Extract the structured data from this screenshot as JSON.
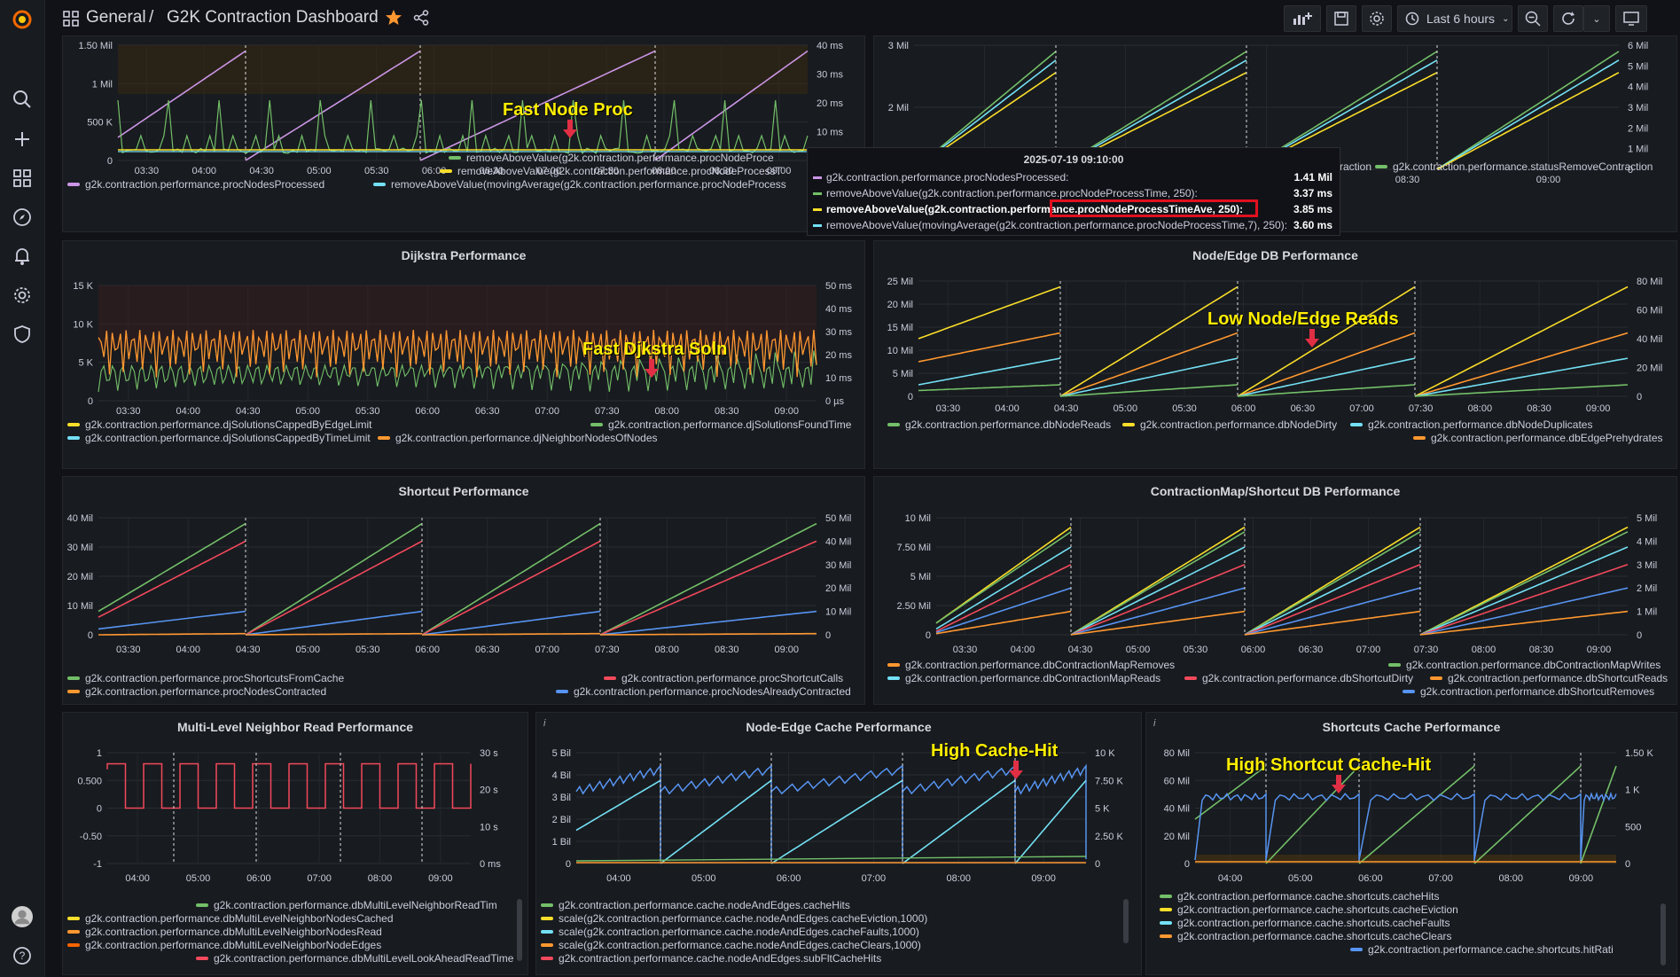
{
  "topbar": {
    "home": "General",
    "sep": "/",
    "title": "G2K Contraction Dashboard",
    "time_range": "Last 6 hours"
  },
  "colors": {
    "green": "#73bf69",
    "yellow": "#fade2a",
    "purple": "#ca95e5",
    "cyan": "#8ab8ff",
    "lightblue": "#73e0f5",
    "orange": "#ff9830",
    "red": "#f2495c",
    "blue": "#5794f2",
    "dark_orange": "#fa6400"
  },
  "icons": {
    "logo": "grafana-logo-icon",
    "search": "search-icon",
    "plus": "plus-icon",
    "dashboards": "dashboards-icon",
    "explore": "compass-icon",
    "alerts": "bell-icon",
    "config": "gear-icon",
    "shield": "shield-icon",
    "avatar": "avatar",
    "help": "help-icon"
  },
  "tooltip": {
    "time": "2025-07-19 09:10:00",
    "rows": [
      {
        "label": "g2k.contraction.performance.procNodesProcessed:",
        "value": "1.41 Mil",
        "color": "#ca95e5",
        "bold": false
      },
      {
        "label": "removeAboveValue(g2k.contraction.performance.procNodeProcessTime, 250):",
        "value": "3.37 ms",
        "color": "#73bf69",
        "bold": false
      },
      {
        "label": "removeAboveValue(g2k.contraction.performance.procNodeProcessTimeAve, 250):",
        "value": "3.85 ms",
        "color": "#fade2a",
        "bold": true
      },
      {
        "label": "removeAboveValue(movingAverage(g2k.contraction.performance.procNodeProcessTime,7), 250):",
        "value": "3.60 ms",
        "color": "#73e0f5",
        "bold": false
      }
    ]
  },
  "panels": {
    "p1": {
      "title": "",
      "y_left": [
        "1.50 Mil",
        "1 Mil",
        "500 K",
        "0"
      ],
      "y_right": [
        "40 ms",
        "30 ms",
        "20 ms",
        "10 ms",
        "0 ms"
      ],
      "x": [
        "03:30",
        "04:00",
        "04:30",
        "05:00",
        "05:30",
        "06:00",
        "06:30",
        "07:00",
        "07:30",
        "08:00",
        "08:30",
        "09:00"
      ],
      "legend": [
        {
          "label": "removeAboveValue(g2k.contraction.performance.procNodeProce",
          "color": "#73bf69"
        },
        {
          "label": "removeAboveValue(g2k.contraction.performance.procNodeProcessT",
          "color": "#fade2a"
        },
        {
          "label": "g2k.contraction.performance.procNodesProcessed",
          "color": "#ca95e5"
        },
        {
          "label": "removeAboveValue(movingAverage(g2k.contraction.performance.procNodeProcess",
          "color": "#73e0f5"
        }
      ],
      "annotation": "Fast Node Proc"
    },
    "p2": {
      "title": "",
      "y_left": [
        "3 Mil",
        "2 Mil",
        "1 Mil"
      ],
      "y_right": [
        "6 Mil",
        "5 Mil",
        "4 Mil",
        "3 Mil",
        "2 Mil",
        "1 Mil",
        "0"
      ],
      "x": [
        "00",
        "07:30",
        "08:00",
        "08:30",
        "09:00"
      ],
      "legend": [
        {
          "label": "raction",
          "color": "#73e0f5"
        },
        {
          "label": "g2k.contraction.performance.statusRemoveContraction",
          "color": "#73bf69"
        }
      ]
    },
    "dijkstra": {
      "title": "Dijkstra Performance",
      "y_left": [
        "15 K",
        "10 K",
        "5 K",
        "0"
      ],
      "y_right": [
        "50 ms",
        "40 ms",
        "30 ms",
        "20 ms",
        "10 ms",
        "0 µs"
      ],
      "x": [
        "03:30",
        "04:00",
        "04:30",
        "05:00",
        "05:30",
        "06:00",
        "06:30",
        "07:00",
        "07:30",
        "08:00",
        "08:30",
        "09:00"
      ],
      "legend": [
        {
          "label": "g2k.contraction.performance.djSolutionsCappedByEdgeLimit",
          "color": "#fade2a"
        },
        {
          "label": "g2k.contraction.performance.djSolutionsFoundTime",
          "color": "#73bf69"
        },
        {
          "label": "g2k.contraction.performance.djSolutionsCappedByTimeLimit",
          "color": "#73e0f5"
        },
        {
          "label": "g2k.contraction.performance.djNeighborNodesOfNodes",
          "color": "#ff9830"
        }
      ],
      "annotation": "Fast Djkstra Soln"
    },
    "nodeedge": {
      "title": "Node/Edge DB Performance",
      "y_left": [
        "25 Mil",
        "20 Mil",
        "15 Mil",
        "10 Mil",
        "5 Mil",
        "0"
      ],
      "y_right": [
        "80 Mil",
        "60 Mil",
        "40 Mil",
        "20 Mil",
        "0"
      ],
      "x": [
        "03:30",
        "04:00",
        "04:30",
        "05:00",
        "05:30",
        "06:00",
        "06:30",
        "07:00",
        "07:30",
        "08:00",
        "08:30",
        "09:00"
      ],
      "legend": [
        {
          "label": "g2k.contraction.performance.dbNodeReads",
          "color": "#73bf69"
        },
        {
          "label": "g2k.contraction.performance.dbNodeDirty",
          "color": "#fade2a"
        },
        {
          "label": "g2k.contraction.performance.dbNodeDuplicates",
          "color": "#73e0f5"
        },
        {
          "label": "g2k.contraction.performance.dbEdgePrehydrates",
          "color": "#ff9830"
        }
      ],
      "annotation": "Low Node/Edge Reads"
    },
    "shortcut": {
      "title": "Shortcut Performance",
      "y_left": [
        "40 Mil",
        "30 Mil",
        "20 Mil",
        "10 Mil",
        "0"
      ],
      "y_right": [
        "50 Mil",
        "40 Mil",
        "30 Mil",
        "20 Mil",
        "10 Mil",
        "0"
      ],
      "x": [
        "03:30",
        "04:00",
        "04:30",
        "05:00",
        "05:30",
        "06:00",
        "06:30",
        "07:00",
        "07:30",
        "08:00",
        "08:30",
        "09:00"
      ],
      "legend": [
        {
          "label": "g2k.contraction.performance.procShortcutsFromCache",
          "color": "#73bf69"
        },
        {
          "label": "g2k.contraction.performance.procShortcutCalls",
          "color": "#f2495c"
        },
        {
          "label": "g2k.contraction.performance.procNodesContracted",
          "color": "#ff9830"
        },
        {
          "label": "g2k.contraction.performance.procNodesAlreadyContracted",
          "color": "#5794f2"
        }
      ]
    },
    "cmap": {
      "title": "ContractionMap/Shortcut DB Performance",
      "y_left": [
        "10 Mil",
        "7.50 Mil",
        "5 Mil",
        "2.50 Mil",
        "0"
      ],
      "y_right": [
        "5 Mil",
        "4 Mil",
        "3 Mil",
        "2 Mil",
        "1 Mil",
        "0"
      ],
      "x": [
        "03:30",
        "04:00",
        "04:30",
        "05:00",
        "05:30",
        "06:00",
        "06:30",
        "07:00",
        "07:30",
        "08:00",
        "08:30",
        "09:00"
      ],
      "legend": [
        {
          "label": "g2k.contraction.performance.dbContractionMapRemoves",
          "color": "#ff9830"
        },
        {
          "label": "g2k.contraction.performance.dbContractionMapWrites",
          "color": "#73bf69"
        },
        {
          "label": "g2k.contraction.performance.dbContractionMapReads",
          "color": "#73e0f5"
        },
        {
          "label": "g2k.contraction.performance.dbShortcutDirty",
          "color": "#f2495c"
        },
        {
          "label": "g2k.contraction.performance.dbShortcutReads",
          "color": "#ff9830"
        },
        {
          "label": "g2k.contraction.performance.dbShortcutRemoves",
          "color": "#5794f2"
        }
      ]
    },
    "mlnr": {
      "title": "Multi-Level Neighbor Read Performance",
      "y_left": [
        "1",
        "0.500",
        "0",
        "-0.50",
        "-1"
      ],
      "y_right": [
        "30 s",
        "20 s",
        "10 s",
        "0 ms"
      ],
      "x": [
        "04:00",
        "05:00",
        "06:00",
        "07:00",
        "08:00",
        "09:00"
      ],
      "legend": [
        {
          "label": "g2k.contraction.performance.dbMultiLevelNeighborReadTim",
          "color": "#73bf69"
        },
        {
          "label": "g2k.contraction.performance.dbMultiLevelNeighborNodesCached",
          "color": "#fade2a"
        },
        {
          "label": "g2k.contraction.performance.dbMultiLevelNeighborNodesRead",
          "color": "#ff9830"
        },
        {
          "label": "g2k.contraction.performance.dbMultiLevelNeighborNodeEdges",
          "color": "#fa6400"
        },
        {
          "label": "g2k.contraction.performance.dbMultiLevelLookAheadReadTime",
          "color": "#f2495c"
        }
      ]
    },
    "necache": {
      "title": "Node-Edge Cache Performance",
      "y_left": [
        "5 Bil",
        "4 Bil",
        "3 Bil",
        "2 Bil",
        "1 Bil",
        "0"
      ],
      "y_right": [
        "10 K",
        "7.50 K",
        "5 K",
        "2.50 K",
        "0"
      ],
      "x": [
        "04:00",
        "05:00",
        "06:00",
        "07:00",
        "08:00",
        "09:00"
      ],
      "legend": [
        {
          "label": "g2k.contraction.performance.cache.nodeAndEdges.cacheHits",
          "color": "#73bf69"
        },
        {
          "label": "scale(g2k.contraction.performance.cache.nodeAndEdges.cacheEviction,1000)",
          "color": "#fade2a"
        },
        {
          "label": "scale(g2k.contraction.performance.cache.nodeAndEdges.cacheFaults,1000)",
          "color": "#73e0f5"
        },
        {
          "label": "scale(g2k.contraction.performance.cache.nodeAndEdges.cacheClears,1000)",
          "color": "#ff9830"
        },
        {
          "label": "g2k.contraction.performance.cache.nodeAndEdges.subFltCacheHits",
          "color": "#f2495c"
        }
      ],
      "annotation": "High Cache-Hit"
    },
    "sccache": {
      "title": "Shortcuts Cache Performance",
      "y_left": [
        "80 Mil",
        "60 Mil",
        "40 Mil",
        "20 Mil",
        "0"
      ],
      "y_right": [
        "1.50 K",
        "1 K",
        "500",
        "0"
      ],
      "x": [
        "04:00",
        "05:00",
        "06:00",
        "07:00",
        "08:00",
        "09:00"
      ],
      "legend": [
        {
          "label": "g2k.contraction.performance.cache.shortcuts.cacheHits",
          "color": "#73bf69"
        },
        {
          "label": "g2k.contraction.performance.cache.shortcuts.cacheEviction",
          "color": "#fade2a"
        },
        {
          "label": "g2k.contraction.performance.cache.shortcuts.cacheFaults",
          "color": "#73e0f5"
        },
        {
          "label": "g2k.contraction.performance.cache.shortcuts.cacheClears",
          "color": "#ff9830"
        },
        {
          "label": "g2k.contraction.performance.cache.shortcuts.hitRati",
          "color": "#5794f2"
        }
      ],
      "annotation": "High Shortcut Cache-Hit"
    }
  }
}
